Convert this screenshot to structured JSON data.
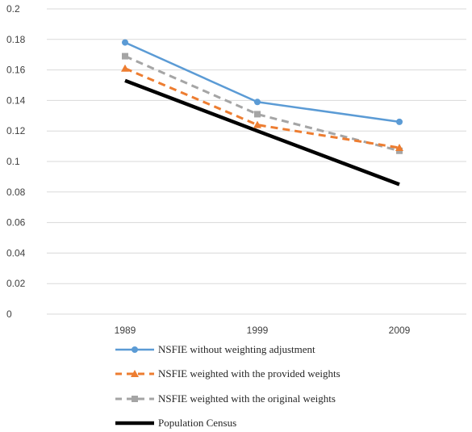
{
  "chart_data": {
    "type": "line",
    "title": "",
    "xlabel": "",
    "ylabel": "",
    "categories": [
      "1989",
      "1999",
      "2009"
    ],
    "ylim": [
      0,
      0.2
    ],
    "yticks": [
      "0",
      "0.02",
      "0.04",
      "0.06",
      "0.08",
      "0.1",
      "0.12",
      "0.14",
      "0.16",
      "0.18",
      "0.2"
    ],
    "grid": true,
    "legend_position": "bottom",
    "series": [
      {
        "name": "NSFIE without weighting adjustment",
        "values": [
          0.178,
          0.139,
          0.126
        ],
        "color": "#5b9bd5",
        "dash": "solid",
        "marker": "circle"
      },
      {
        "name": "NSFIE weighted with the provided weights",
        "values": [
          0.161,
          0.124,
          0.109
        ],
        "color": "#ed7d31",
        "dash": "dashed",
        "marker": "triangle"
      },
      {
        "name": "NSFIE weighted with the original weights",
        "values": [
          0.169,
          0.131,
          0.107
        ],
        "color": "#a5a5a5",
        "dash": "dashed",
        "marker": "square"
      },
      {
        "name": "Population Census",
        "values": [
          0.153,
          0.12,
          0.085
        ],
        "color": "#000000",
        "dash": "solid",
        "marker": "none"
      }
    ]
  }
}
